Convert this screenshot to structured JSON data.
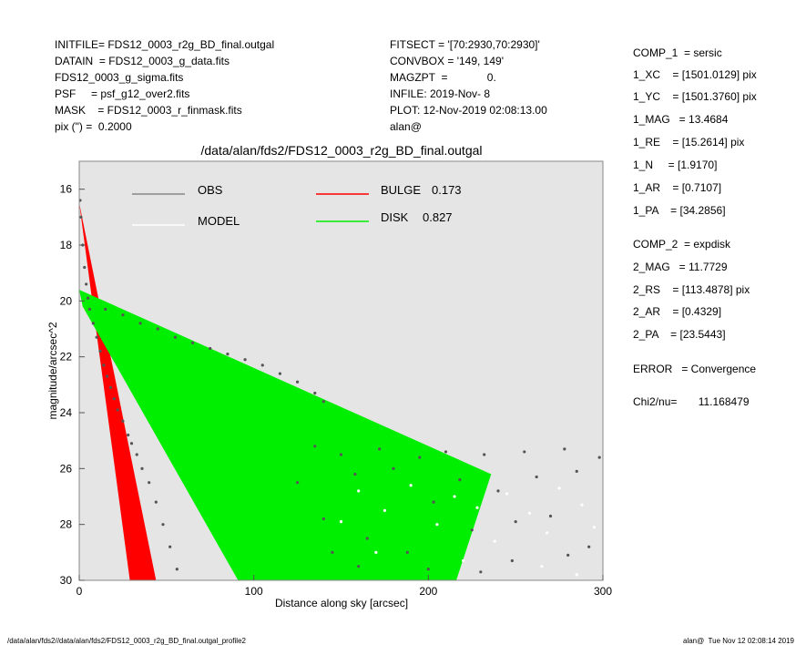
{
  "header": {
    "left": [
      "INITFILE= FDS12_0003_r2g_BD_final.outgal",
      "DATAIN  = FDS12_0003_g_data.fits",
      "FDS12_0003_g_sigma.fits",
      "PSF     = psf_g12_over2.fits",
      "MASK    = FDS12_0003_r_finmask.fits",
      "pix (\") =  0.2000"
    ],
    "middle": [
      "FITSECT = '[70:2930,70:2930]'",
      "CONVBOX = '149, 149'",
      "MAGZPT  =             0.",
      "INFILE: 2019-Nov- 8",
      "PLOT: 12-Nov-2019 02:08:13.00",
      "alan@"
    ],
    "right": [
      "COMP_1  = sersic",
      "1_XC    = [1501.0129] pix",
      "1_YC    = [1501.3760] pix",
      "1_MAG   = 13.4684",
      "1_RE    = [15.2614] pix",
      "1_N     = [1.9170]",
      "1_AR    = [0.7107]",
      "1_PA    = [34.2856]",
      "COMP_2  = expdisk",
      "2_MAG   = 11.7729",
      "2_RS    = [113.4878] pix",
      "2_AR    = [0.4329]",
      "2_PA    = [23.5443]",
      "ERROR   = Convergence",
      "Chi2/nu=       11.168479"
    ]
  },
  "footer": {
    "left": "/data/alan/fds2//data/alan/fds2/FDS12_0003_r2g_BD_final.outgal_profile2",
    "right": "alan@  Tue Nov 12 02:08:14 2019"
  },
  "chart_data": {
    "type": "scatter",
    "title": "/data/alan/fds2/FDS12_0003_r2g_BD_final.outgal",
    "x_label": "Distance along sky [arcsec]",
    "y_label": "magnitude/arcsec^2",
    "xlim": [
      0,
      300
    ],
    "xticks": [
      0,
      100,
      200,
      300
    ],
    "ylim": [
      30,
      15
    ],
    "yticks": [
      16,
      18,
      20,
      22,
      24,
      26,
      28,
      30
    ],
    "background": "#e5e5e5",
    "series": [
      {
        "name": "OBS",
        "color": "#555555",
        "kind": "points",
        "x": [
          0.5,
          1,
          2,
          3,
          4,
          5,
          6,
          8,
          10,
          12,
          14,
          16,
          18,
          20,
          22,
          25,
          28,
          30,
          33,
          36,
          40,
          44,
          48,
          52,
          56,
          15,
          25,
          35,
          45,
          55,
          65,
          75,
          85,
          95,
          105,
          115,
          125,
          135,
          140,
          125,
          135,
          140,
          150,
          158,
          165,
          172,
          180,
          188,
          195,
          203,
          210,
          218,
          225,
          232,
          240,
          248,
          255,
          262,
          270,
          278,
          285,
          292,
          298,
          160,
          200,
          250,
          280,
          145,
          230
        ],
        "values": [
          16.4,
          17,
          18,
          18.8,
          19.4,
          19.9,
          20.3,
          20.8,
          21.3,
          21.8,
          22.3,
          22.7,
          23.1,
          23.5,
          23.9,
          24.3,
          24.8,
          25.1,
          25.5,
          26,
          26.5,
          27.2,
          28,
          28.8,
          29.6,
          20.3,
          20.5,
          20.8,
          21,
          21.3,
          21.5,
          21.7,
          21.9,
          22.1,
          22.3,
          22.6,
          22.9,
          23.3,
          23.6,
          26.5,
          25.2,
          27.8,
          25.5,
          26.2,
          28.5,
          25.3,
          26,
          29,
          25.6,
          27.2,
          25.4,
          26.4,
          28.2,
          25.5,
          26.8,
          29.3,
          25.4,
          26.3,
          27.7,
          25.3,
          26.1,
          28.8,
          25.6,
          29.5,
          29.6,
          27.9,
          29.1,
          29,
          29.7
        ]
      },
      {
        "name": "MODEL",
        "color": "#ffffff",
        "kind": "points",
        "x": [
          160,
          175,
          190,
          205,
          215,
          228,
          238,
          245,
          258,
          268,
          275,
          288,
          295,
          170,
          220,
          265,
          285,
          150
        ],
        "values": [
          26.8,
          27.5,
          26.6,
          28,
          27,
          27.4,
          28.6,
          26.9,
          27.6,
          28.3,
          26.7,
          27.3,
          28.1,
          29,
          29.3,
          29.5,
          29.8,
          27.9
        ]
      },
      {
        "name": "BULGE",
        "fraction": 0.173,
        "color": "#ff0000",
        "kind": "area",
        "x": [
          0,
          10,
          20,
          29,
          44,
          30,
          20,
          10
        ],
        "values": [
          16.5,
          21.2,
          25.8,
          30,
          30,
          25.7,
          22.6,
          19.6
        ]
      },
      {
        "name": "DISK",
        "fraction": 0.827,
        "color": "#00ee00",
        "kind": "area",
        "x": [
          0,
          236,
          216,
          91,
          2
        ],
        "values": [
          19.6,
          26.2,
          30,
          30,
          20.2
        ]
      }
    ]
  }
}
